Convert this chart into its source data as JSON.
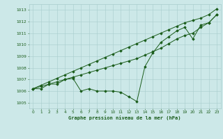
{
  "title": "Graphe pression niveau de la mer (hPa)",
  "xlim": [
    -0.5,
    23.5
  ],
  "ylim": [
    1004.5,
    1013.5
  ],
  "yticks": [
    1005,
    1006,
    1007,
    1008,
    1009,
    1010,
    1011,
    1012,
    1013
  ],
  "xticks": [
    0,
    1,
    2,
    3,
    4,
    5,
    6,
    7,
    8,
    9,
    10,
    11,
    12,
    13,
    14,
    15,
    16,
    17,
    18,
    19,
    20,
    21,
    22,
    23
  ],
  "bg_color": "#cce8e8",
  "line_color": "#1a5c1a",
  "grid_color": "#a8cccc",
  "series_jagged": [
    1006.2,
    1006.2,
    1006.6,
    1006.6,
    1007.0,
    1007.1,
    1006.0,
    1006.2,
    1006.0,
    1006.0,
    1006.0,
    1005.9,
    1005.5,
    1005.1,
    1008.1,
    1009.3,
    1010.2,
    1010.7,
    1011.2,
    1011.5,
    1010.5,
    1011.7,
    1011.9,
    1012.6
  ],
  "series_straight1": [
    1006.2,
    1006.5,
    1006.8,
    1007.1,
    1007.4,
    1007.7,
    1008.0,
    1008.3,
    1008.6,
    1008.9,
    1009.2,
    1009.5,
    1009.8,
    1010.1,
    1010.4,
    1010.7,
    1011.0,
    1011.3,
    1011.6,
    1011.9,
    1012.1,
    1012.3,
    1012.6,
    1013.1
  ],
  "series_straight2": [
    1006.2,
    1006.4,
    1006.6,
    1006.8,
    1007.0,
    1007.2,
    1007.4,
    1007.6,
    1007.8,
    1008.0,
    1008.2,
    1008.4,
    1008.6,
    1008.8,
    1009.1,
    1009.4,
    1009.7,
    1010.1,
    1010.5,
    1010.8,
    1011.0,
    1011.5,
    1011.9,
    1012.6
  ]
}
